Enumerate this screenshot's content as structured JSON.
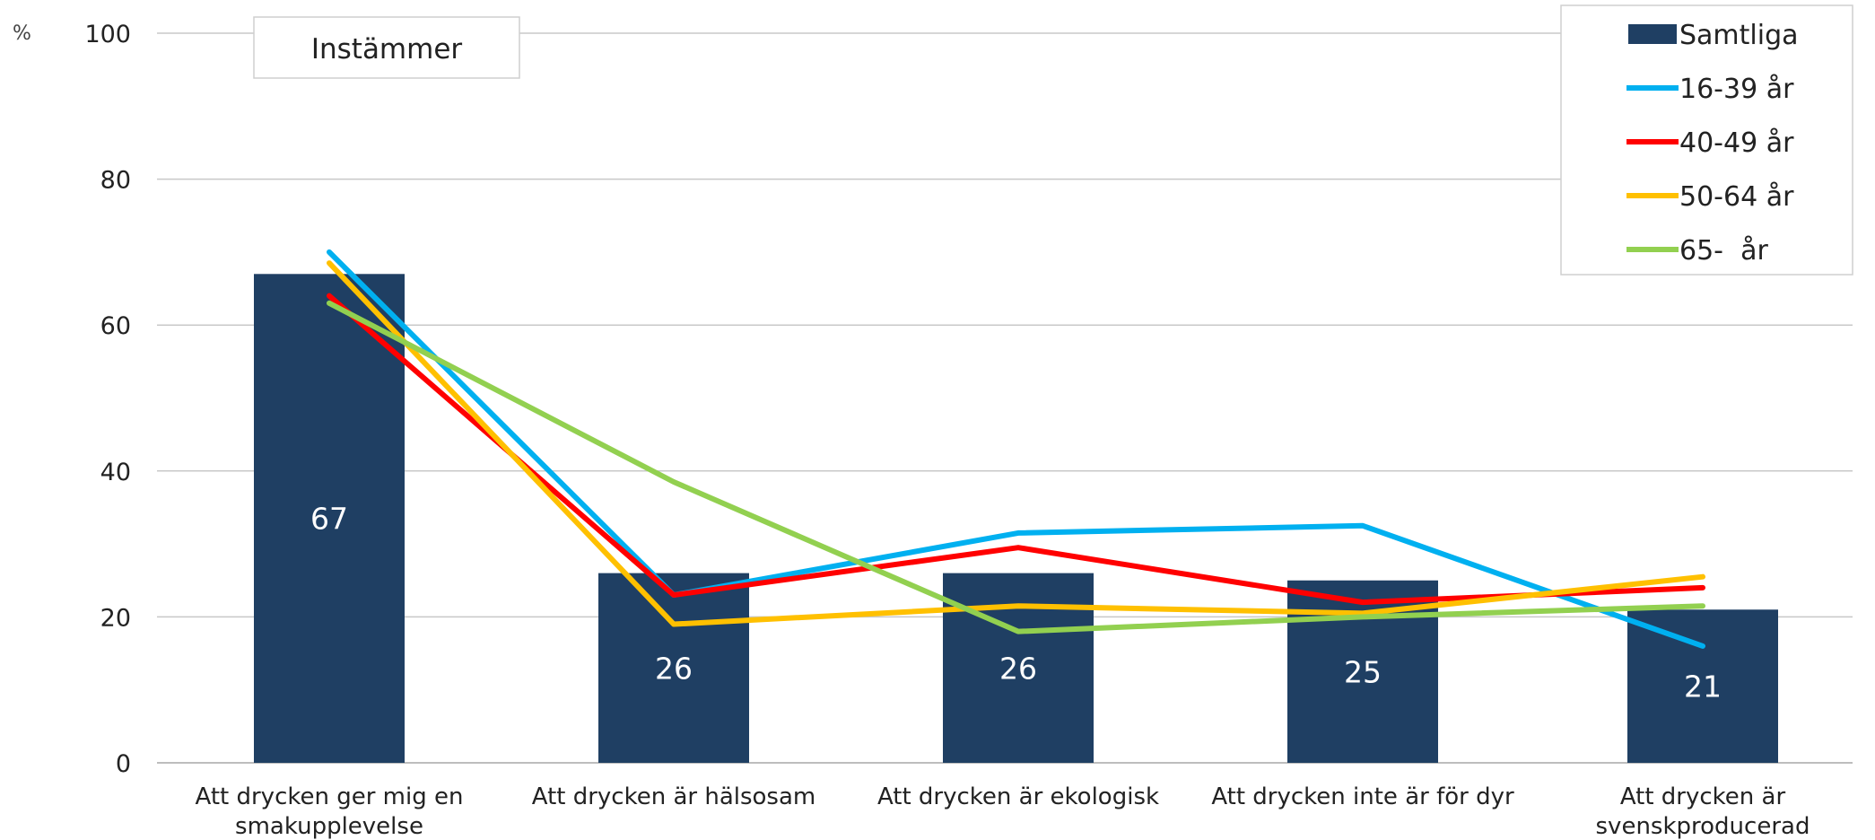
{
  "chart_data": {
    "type": "bar",
    "unit": "%",
    "subtitle": "Instämmer",
    "ylim": [
      0,
      100
    ],
    "yticks": [
      0,
      20,
      40,
      60,
      80,
      100
    ],
    "grid": true,
    "legend_position": "top-right",
    "categories": [
      [
        "Att drycken ger mig en",
        "smakupplevelse"
      ],
      [
        "Att drycken är hälsosam"
      ],
      [
        "Att drycken är ekologisk"
      ],
      [
        "Att drycken inte är för dyr"
      ],
      [
        "Att drycken är",
        "svenskproducerad"
      ]
    ],
    "series": [
      {
        "name": "Samtliga",
        "type": "bar",
        "color": "#1f3f63",
        "values": [
          67,
          26,
          26,
          25,
          21
        ],
        "labels": [
          "67",
          "26",
          "26",
          "25",
          "21"
        ]
      },
      {
        "name": "16-39 år",
        "type": "line",
        "color": "#00b0f0",
        "values": [
          70,
          23,
          31.5,
          32.5,
          16
        ]
      },
      {
        "name": "40-49 år",
        "type": "line",
        "color": "#ff0000",
        "values": [
          64,
          23,
          29.5,
          22,
          24
        ]
      },
      {
        "name": "50-64 år",
        "type": "line",
        "color": "#ffc000",
        "values": [
          68.5,
          19,
          21.5,
          20.5,
          25.5
        ]
      },
      {
        "name": "65-  år",
        "type": "line",
        "color": "#92d050",
        "values": [
          63,
          38.5,
          18,
          20,
          21.5
        ]
      }
    ]
  }
}
